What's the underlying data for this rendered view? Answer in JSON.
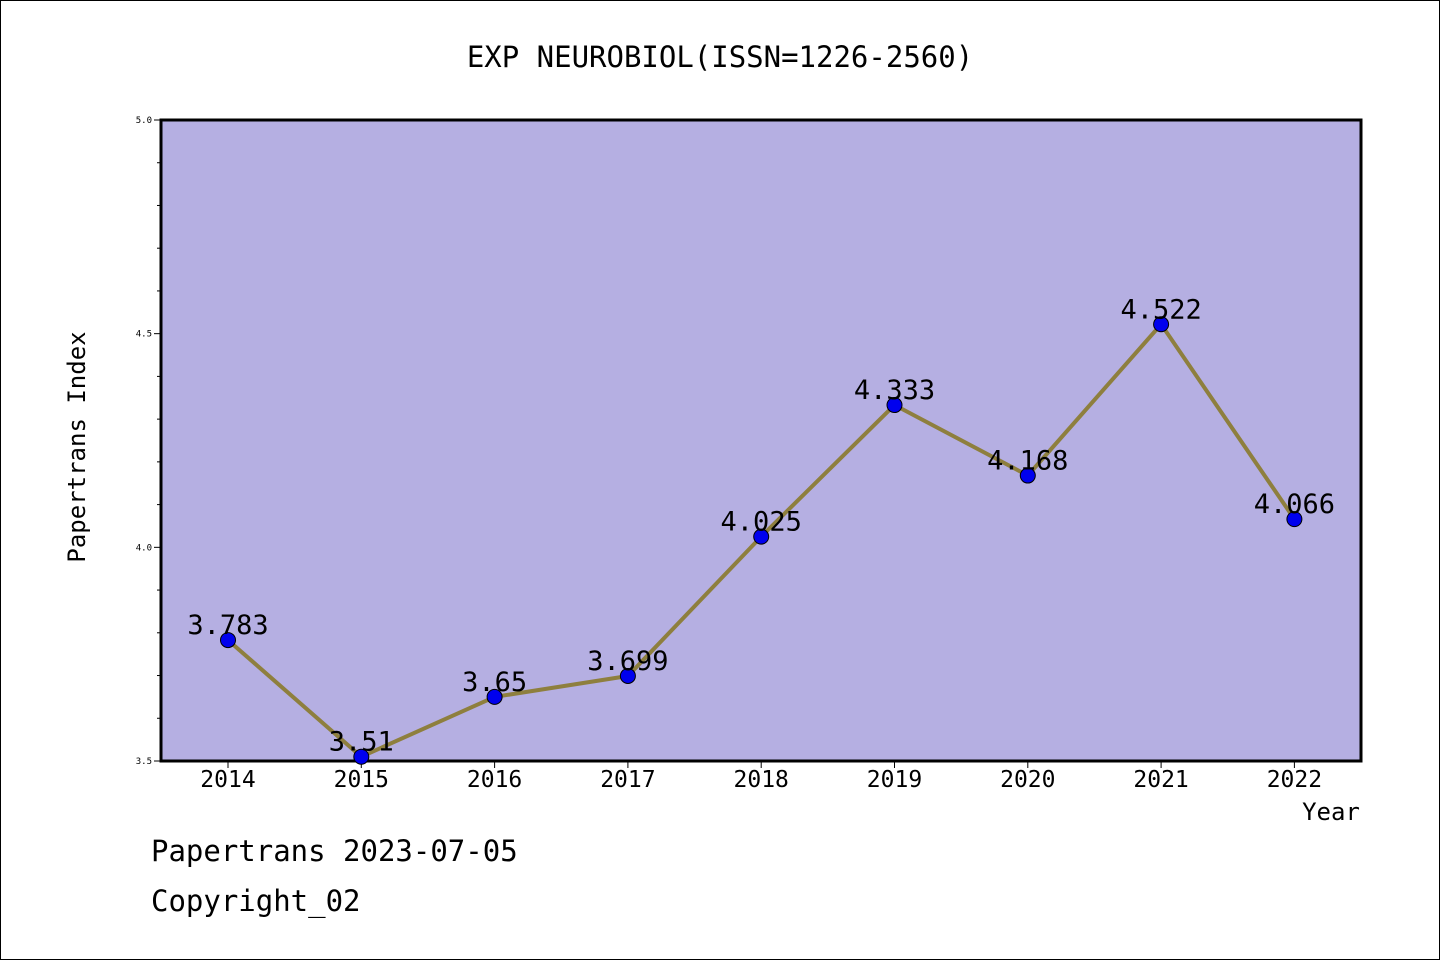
{
  "chart_data": {
    "type": "line",
    "title": "EXP NEUROBIOL(ISSN=1226-2560)",
    "xlabel": "Year",
    "ylabel": "Papertrans Index",
    "categories": [
      "2014",
      "2015",
      "2016",
      "2017",
      "2018",
      "2019",
      "2020",
      "2021",
      "2022"
    ],
    "series": [
      {
        "values": [
          3.783,
          3.51,
          3.65,
          3.699,
          4.025,
          4.333,
          4.168,
          4.522,
          4.066
        ]
      }
    ],
    "data_labels": [
      "3.783",
      "3.51",
      "3.65",
      "3.699",
      "4.025",
      "4.333",
      "4.168",
      "4.522",
      "4.066"
    ],
    "ylim": [
      3.5,
      5.0
    ],
    "yticks": [
      "3.5",
      "4.0",
      "4.5",
      "5.0"
    ],
    "grid": false,
    "colors": {
      "plot_background": "#b5afe2",
      "line": "#8e7f3e",
      "marker": "#0000ee"
    }
  },
  "footer": {
    "date_line": "Papertrans 2023-07-05",
    "copyright_line": "Copyright_02"
  }
}
